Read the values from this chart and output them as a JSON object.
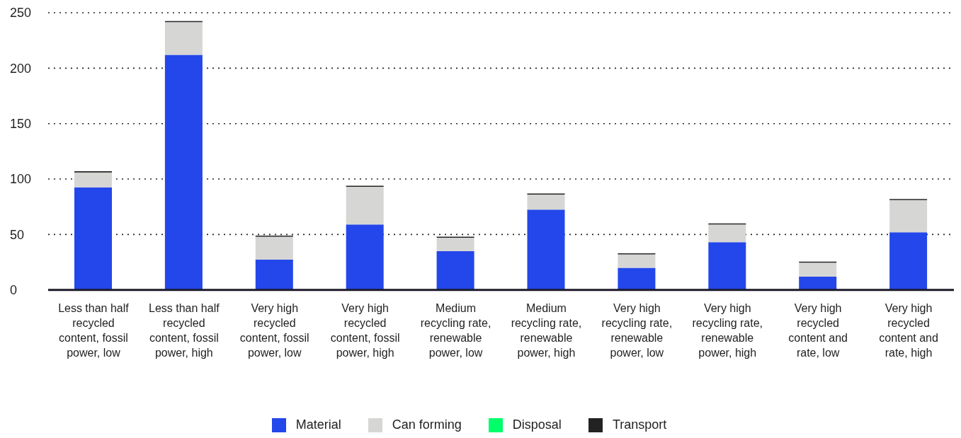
{
  "chart_data": {
    "type": "bar",
    "stacked": true,
    "categories": [
      "Less than half recycled content, fossil power, low",
      "Less than half recycled content, fossil power, high",
      "Very high recycled content, fossil power, low",
      "Very high recycled content, fossil power, high",
      "Medium recycling rate, renewable power, low",
      "Medium recycling rate, renewable power, high",
      "Very high recycling rate, renewable power, low",
      "Very high recycling rate, renewable power, high",
      "Very high recycled content and rate, low",
      "Very high recycled content and rate, high"
    ],
    "series": [
      {
        "name": "Material",
        "color": "#2347ea",
        "values": [
          92.5,
          212,
          27.5,
          59,
          35,
          72.5,
          20,
          43,
          12,
          52
        ]
      },
      {
        "name": "Can forming",
        "color": "#d6d6d4",
        "values": [
          13.5,
          29.5,
          20.5,
          34,
          12,
          13.5,
          12,
          16,
          12.5,
          29
        ]
      },
      {
        "name": "Disposal",
        "color": "#00ff6a",
        "values": [
          0,
          0,
          0,
          0,
          0,
          0,
          0,
          0,
          0,
          0
        ]
      },
      {
        "name": "Transport",
        "color": "#222222",
        "values": [
          1,
          1,
          1,
          1,
          1,
          1,
          1,
          1,
          1,
          1
        ]
      }
    ],
    "ylim": [
      0,
      250
    ],
    "yticks": [
      0,
      50,
      100,
      150,
      200,
      250
    ],
    "grid": "y",
    "legend": "bottom"
  }
}
